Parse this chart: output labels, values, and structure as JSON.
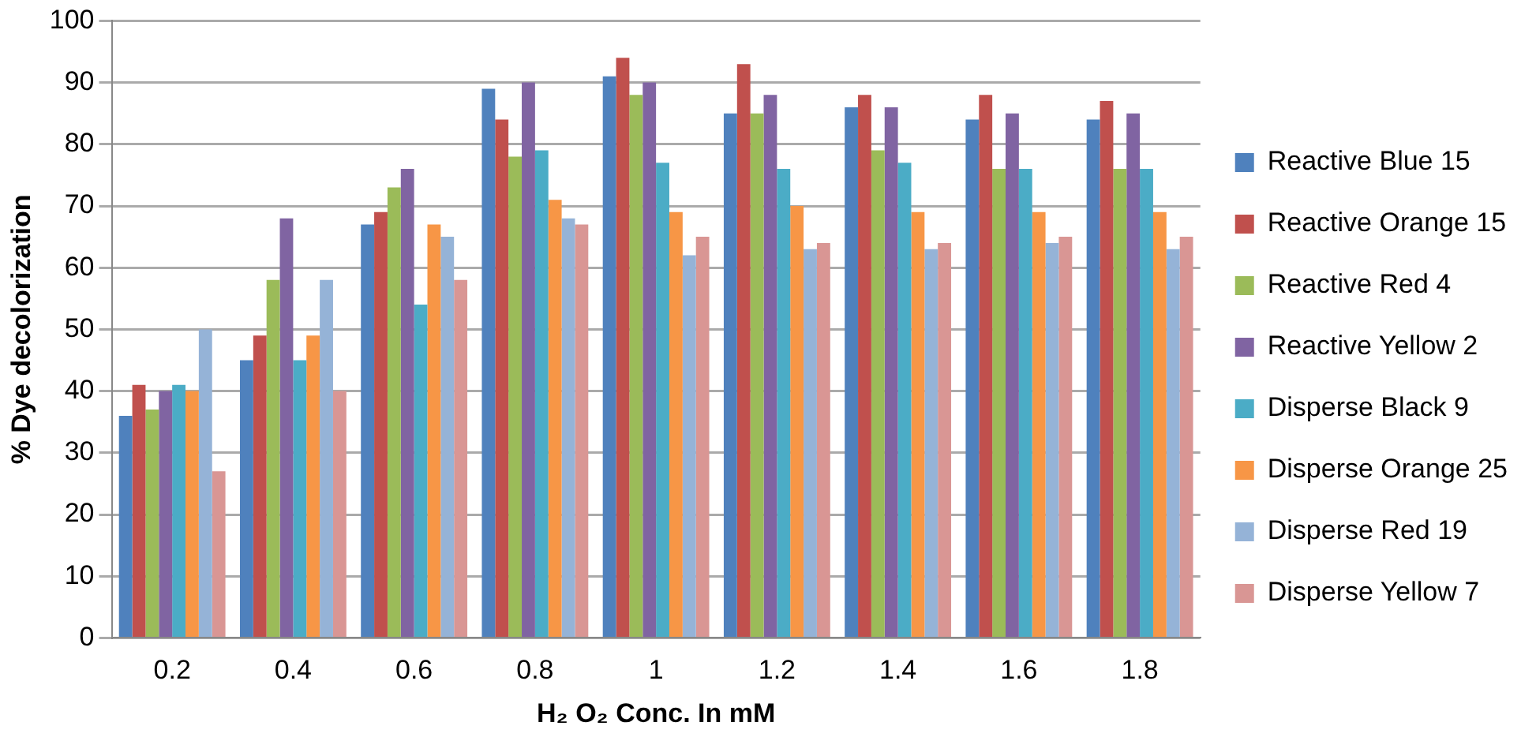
{
  "chart_data": {
    "type": "bar",
    "xlabel": "H₂ O₂ Conc. In mM",
    "ylabel": "% Dye decolorization",
    "categories": [
      "0.2",
      "0.4",
      "0.6",
      "0.8",
      "1",
      "1.2",
      "1.4",
      "1.6",
      "1.8"
    ],
    "series": [
      {
        "name": "Reactive Blue 15",
        "color": "#4f81bd",
        "values": [
          36,
          45,
          67,
          89,
          91,
          85,
          86,
          84,
          84
        ]
      },
      {
        "name": "Reactive Orange 15",
        "color": "#c0504d",
        "values": [
          41,
          49,
          69,
          84,
          94,
          93,
          88,
          88,
          87
        ]
      },
      {
        "name": "Reactive Red 4",
        "color": "#9bbb59",
        "values": [
          37,
          58,
          73,
          78,
          88,
          85,
          79,
          76,
          76
        ]
      },
      {
        "name": "Reactive Yellow 2",
        "color": "#8064a2",
        "values": [
          40,
          68,
          76,
          90,
          90,
          88,
          86,
          85,
          85
        ]
      },
      {
        "name": "Disperse Black 9",
        "color": "#4bacc6",
        "values": [
          41,
          45,
          54,
          79,
          77,
          76,
          77,
          76,
          76
        ]
      },
      {
        "name": "Disperse Orange 25",
        "color": "#f79646",
        "values": [
          40,
          49,
          67,
          71,
          69,
          70,
          69,
          69,
          69
        ]
      },
      {
        "name": "Disperse Red 19",
        "color": "#95b3d7",
        "values": [
          50,
          58,
          65,
          68,
          62,
          63,
          63,
          64,
          63
        ]
      },
      {
        "name": "Disperse Yellow 7",
        "color": "#d99694",
        "values": [
          27,
          40,
          58,
          67,
          65,
          64,
          64,
          65,
          65
        ]
      }
    ],
    "ylim": [
      0,
      100
    ],
    "yticks": [
      0,
      10,
      20,
      30,
      40,
      50,
      60,
      70,
      80,
      90,
      100
    ],
    "grid": "y",
    "legend": "right"
  }
}
